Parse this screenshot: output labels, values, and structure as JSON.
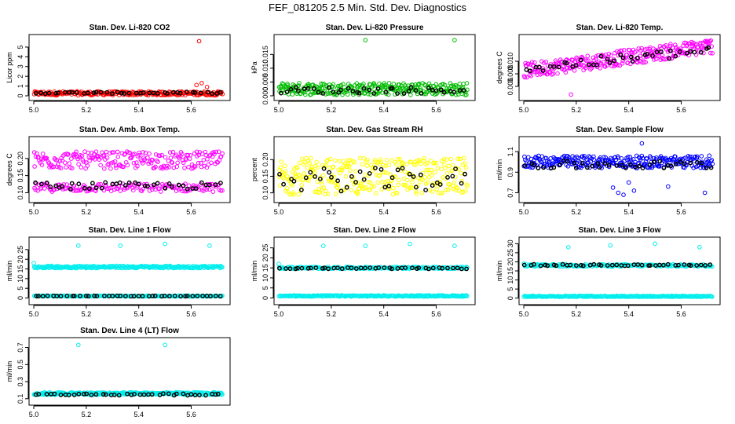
{
  "figure": {
    "title": "FEF_081205  2.5 Min. Std. Dev. Diagnostics"
  },
  "chart_data": [
    {
      "type": "scatter",
      "title": "Stan. Dev. Li-820 CO2",
      "ylabel": "Licor ppm",
      "xlim": [
        5.0,
        5.73
      ],
      "ylim": [
        0.0,
        5.8
      ],
      "xticks": [
        "5.0",
        "5.2",
        "5.4",
        "5.6"
      ],
      "xtick_values": [
        5.0,
        5.2,
        5.4,
        5.6
      ],
      "yticks": [
        "0",
        "1",
        "2",
        "3",
        "4",
        "5"
      ],
      "ytick_values": [
        0,
        1,
        2,
        3,
        4,
        5
      ],
      "series": [
        {
          "name": "all",
          "color": "#ff0000",
          "base": 0.25,
          "spread": 0.2,
          "count": 260,
          "highlights": [
            [
              5.63,
              5.6
            ],
            [
              5.62,
              1.1
            ],
            [
              5.64,
              1.3
            ],
            [
              5.66,
              0.9
            ]
          ]
        },
        {
          "name": "black",
          "color": "#000000",
          "base": 0.3,
          "spread": 0.08,
          "count": 40,
          "highlights": []
        }
      ]
    },
    {
      "type": "scatter",
      "title": "Stan. Dev. Li-820 Pressure",
      "ylabel": "kPa",
      "xlim": [
        5.0,
        5.73
      ],
      "ylim": [
        0.0,
        0.0205
      ],
      "xticks": [
        "5.0",
        "5.2",
        "5.4",
        "5.6"
      ],
      "xtick_values": [
        5.0,
        5.2,
        5.4,
        5.6
      ],
      "yticks": [
        "0.000",
        "0.005",
        "0.010",
        "0.015"
      ],
      "ytick_values": [
        0.0,
        0.005,
        0.01,
        0.015
      ],
      "series": [
        {
          "name": "all",
          "color": "#00bb00",
          "base": 0.0025,
          "spread": 0.0022,
          "count": 300,
          "highlights": [
            [
              5.33,
              0.0202
            ],
            [
              5.67,
              0.0202
            ]
          ]
        },
        {
          "name": "black",
          "color": "#000000",
          "base": 0.002,
          "spread": 0.0012,
          "count": 40,
          "highlights": []
        }
      ]
    },
    {
      "type": "scatter",
      "title": "Stan. Dev. Li-820 Temp.",
      "ylabel": "degrees C",
      "xlim": [
        5.0,
        5.73
      ],
      "ylim": [
        0.0045,
        0.0135
      ],
      "xticks": [
        "5.0",
        "5.2",
        "5.4",
        "5.6"
      ],
      "xtick_values": [
        5.0,
        5.2,
        5.4,
        5.6
      ],
      "yticks": [
        "0.006",
        "0.008",
        "0.010"
      ],
      "ytick_values": [
        0.006,
        0.008,
        0.01
      ],
      "series": [
        {
          "name": "all",
          "color": "#ff00ff",
          "base": 0.0085,
          "trend": 0.004,
          "spread": 0.0012,
          "count": 300,
          "highlights": [
            [
              5.18,
              0.0047
            ]
          ]
        },
        {
          "name": "black",
          "color": "#000000",
          "base": 0.0088,
          "trend": 0.003,
          "spread": 0.0008,
          "count": 40,
          "highlights": []
        }
      ]
    },
    {
      "type": "scatter",
      "title": "Stan. Dev. Amb. Box Temp.",
      "ylabel": "degrees C",
      "xlim": [
        5.0,
        5.73
      ],
      "ylim": [
        0.085,
        0.25
      ],
      "xticks": [
        "5.0",
        "5.2",
        "5.4",
        "5.6"
      ],
      "xtick_values": [
        5.0,
        5.2,
        5.4,
        5.6
      ],
      "yticks": [
        "0.10",
        "0.15",
        "0.20"
      ],
      "ytick_values": [
        0.1,
        0.15,
        0.2
      ],
      "series": [
        {
          "name": "upper",
          "color": "#ff00ff",
          "base": 0.195,
          "spread": 0.025,
          "count": 220,
          "highlights": []
        },
        {
          "name": "lower",
          "color": "#ff00ff",
          "base": 0.115,
          "spread": 0.012,
          "count": 160,
          "highlights": []
        },
        {
          "name": "black",
          "color": "#000000",
          "base": 0.12,
          "spread": 0.01,
          "count": 40,
          "highlights": []
        }
      ]
    },
    {
      "type": "scatter",
      "title": "Stan. Dev. Gas Stream RH",
      "ylabel": "percent",
      "xlim": [
        5.0,
        5.73
      ],
      "ylim": [
        0.085,
        0.255
      ],
      "xticks": [
        "5.0",
        "5.2",
        "5.4",
        "5.6"
      ],
      "xtick_values": [
        5.0,
        5.2,
        5.4,
        5.6
      ],
      "yticks": [
        "0.10",
        "0.15",
        "0.20"
      ],
      "ytick_values": [
        0.1,
        0.15,
        0.2
      ],
      "series": [
        {
          "name": "all",
          "color": "#ffff00",
          "base": 0.15,
          "spread": 0.055,
          "count": 320,
          "highlights": []
        },
        {
          "name": "black",
          "color": "#000000",
          "base": 0.14,
          "spread": 0.035,
          "count": 40,
          "highlights": []
        }
      ]
    },
    {
      "type": "scatter",
      "title": "Stan. Dev. Sample Flow",
      "ylabel": "ml/min",
      "xlim": [
        5.0,
        5.73
      ],
      "ylim": [
        0.65,
        1.2
      ],
      "xticks": [
        "5.0",
        "5.2",
        "5.4",
        "5.6"
      ],
      "xtick_values": [
        5.0,
        5.2,
        5.4,
        5.6
      ],
      "yticks": [
        "0.7",
        "0.9",
        "1.1"
      ],
      "ytick_values": [
        0.7,
        0.9,
        1.1
      ],
      "series": [
        {
          "name": "all",
          "color": "#0000ff",
          "base": 1.0,
          "spread": 0.06,
          "count": 300,
          "highlights": [
            [
              5.36,
              0.7
            ],
            [
              5.38,
              0.68
            ],
            [
              5.34,
              0.75
            ],
            [
              5.45,
              1.18
            ],
            [
              5.42,
              0.72
            ],
            [
              5.55,
              0.76
            ],
            [
              5.69,
              0.7
            ],
            [
              5.4,
              0.8
            ]
          ]
        },
        {
          "name": "black",
          "color": "#000000",
          "base": 0.97,
          "spread": 0.04,
          "count": 40,
          "highlights": []
        }
      ]
    },
    {
      "type": "scatter",
      "title": "Stan. Dev. Line 1 Flow",
      "ylabel": "ml/min",
      "xlim": [
        5.0,
        5.73
      ],
      "ylim": [
        -1,
        29
      ],
      "xticks": [
        "5.0",
        "5.2",
        "5.4",
        "5.6"
      ],
      "xtick_values": [
        5.0,
        5.2,
        5.4,
        5.6
      ],
      "yticks": [
        "0",
        "5",
        "10",
        "15",
        "20",
        "25"
      ],
      "ytick_values": [
        0,
        5,
        10,
        15,
        20,
        25
      ],
      "series": [
        {
          "name": "high",
          "color": "#00eeee",
          "base": 16,
          "spread": 0.6,
          "count": 260,
          "highlights": [
            [
              5.0,
              18
            ],
            [
              5.17,
              27
            ],
            [
              5.33,
              27
            ],
            [
              5.5,
              28
            ],
            [
              5.67,
              27
            ]
          ]
        },
        {
          "name": "low",
          "color": "#00eeee",
          "base": 1,
          "spread": 0.2,
          "count": 200,
          "highlights": []
        },
        {
          "name": "black",
          "color": "#000000",
          "base": 1,
          "spread": 0.1,
          "count": 42,
          "highlights": []
        }
      ]
    },
    {
      "type": "scatter",
      "title": "Stan. Dev. Line 2 Flow",
      "ylabel": "ml/min",
      "xlim": [
        5.0,
        5.73
      ],
      "ylim": [
        -1,
        28
      ],
      "xticks": [
        "5.0",
        "5.2",
        "5.4",
        "5.6"
      ],
      "xtick_values": [
        5.0,
        5.2,
        5.4,
        5.6
      ],
      "yticks": [
        "0",
        "5",
        "10",
        "15",
        "20",
        "25"
      ],
      "ytick_values": [
        0,
        5,
        10,
        15,
        20,
        25
      ],
      "series": [
        {
          "name": "high",
          "color": "#00eeee",
          "base": 15,
          "spread": 0.5,
          "count": 200,
          "highlights": [
            [
              5.0,
              17
            ],
            [
              5.17,
              26
            ],
            [
              5.33,
              26
            ],
            [
              5.5,
              27
            ],
            [
              5.67,
              26
            ]
          ]
        },
        {
          "name": "low",
          "color": "#00eeee",
          "base": 1,
          "spread": 0.3,
          "count": 240,
          "highlights": []
        },
        {
          "name": "black",
          "color": "#000000",
          "base": 14.8,
          "spread": 0.3,
          "count": 42,
          "highlights": []
        }
      ]
    },
    {
      "type": "scatter",
      "title": "Stan. Dev. Line 3 Flow",
      "ylabel": "ml/min",
      "xlim": [
        5.0,
        5.73
      ],
      "ylim": [
        -1,
        31
      ],
      "xticks": [
        "5.0",
        "5.2",
        "5.4",
        "5.6"
      ],
      "xtick_values": [
        5.0,
        5.2,
        5.4,
        5.6
      ],
      "yticks": [
        "0",
        "5",
        "10",
        "15",
        "20",
        "25",
        "30"
      ],
      "ytick_values": [
        0,
        5,
        10,
        15,
        20,
        25,
        30
      ],
      "series": [
        {
          "name": "high",
          "color": "#00eeee",
          "base": 18,
          "spread": 0.6,
          "count": 200,
          "highlights": [
            [
              5.0,
              19
            ],
            [
              5.17,
              28
            ],
            [
              5.33,
              29
            ],
            [
              5.5,
              30
            ],
            [
              5.67,
              28
            ]
          ]
        },
        {
          "name": "low",
          "color": "#00eeee",
          "base": 1,
          "spread": 0.3,
          "count": 240,
          "highlights": []
        },
        {
          "name": "black",
          "color": "#000000",
          "base": 18.2,
          "spread": 0.4,
          "count": 42,
          "highlights": []
        }
      ]
    },
    {
      "type": "scatter",
      "title": "Stan. Dev. Line 4 (LT) Flow",
      "ylabel": "ml/min",
      "xlim": [
        5.0,
        5.73
      ],
      "ylim": [
        0.08,
        0.76
      ],
      "xticks": [
        "5.0",
        "5.2",
        "5.4",
        "5.6"
      ],
      "xtick_values": [
        5.0,
        5.2,
        5.4,
        5.6
      ],
      "yticks": [
        "0.1",
        "0.3",
        "0.5",
        "0.7"
      ],
      "ytick_values": [
        0.1,
        0.3,
        0.5,
        0.7
      ],
      "series": [
        {
          "name": "all",
          "color": "#00eeee",
          "base": 0.16,
          "spread": 0.015,
          "count": 300,
          "highlights": [
            [
              5.17,
              0.73
            ],
            [
              5.5,
              0.73
            ]
          ]
        },
        {
          "name": "black",
          "color": "#000000",
          "base": 0.15,
          "spread": 0.01,
          "count": 40,
          "highlights": []
        }
      ]
    }
  ]
}
